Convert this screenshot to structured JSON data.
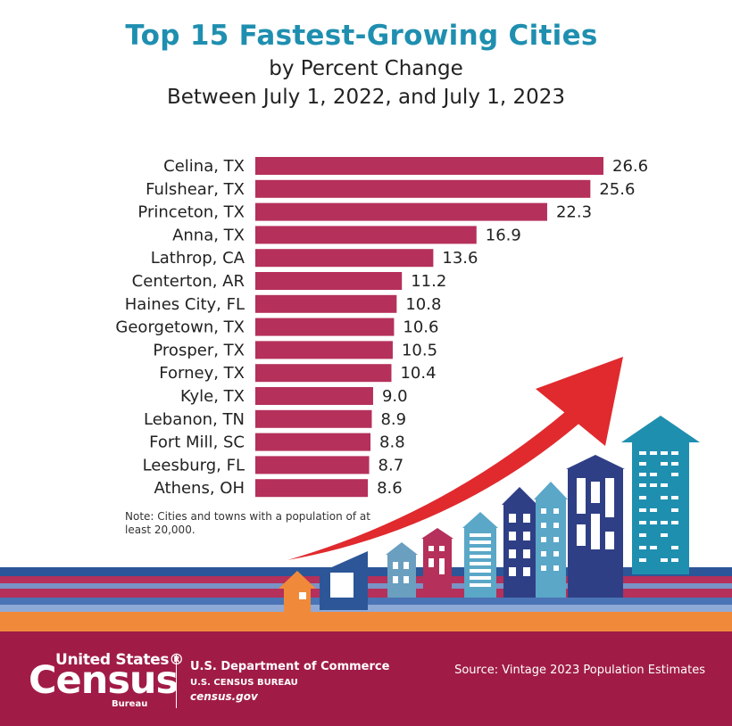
{
  "chart_data": {
    "type": "bar",
    "orientation": "horizontal",
    "title": "Top 15 Fastest-Growing Cities",
    "subtitle": [
      "by Percent Change",
      "Between July 1, 2022, and July 1, 2023"
    ],
    "categories": [
      "Celina, TX",
      "Fulshear, TX",
      "Princeton, TX",
      "Anna, TX",
      "Lathrop, CA",
      "Centerton, AR",
      "Haines City, FL",
      "Georgetown, TX",
      "Prosper, TX",
      "Forney, TX",
      "Kyle, TX",
      "Lebanon, TN",
      "Fort Mill, SC",
      "Leesburg, FL",
      "Athens, OH"
    ],
    "values": [
      26.6,
      25.6,
      22.3,
      16.9,
      13.6,
      11.2,
      10.8,
      10.6,
      10.5,
      10.4,
      9.0,
      8.9,
      8.8,
      8.7,
      8.6
    ],
    "value_labels": [
      "26.6",
      "25.6",
      "22.3",
      "16.9",
      "13.6",
      "11.2",
      "10.8",
      "10.6",
      "10.5",
      "10.4",
      "9.0",
      "8.9",
      "8.8",
      "8.7",
      "8.6"
    ],
    "xlim": [
      0,
      26.6
    ],
    "grid": false,
    "bar_color": "#b5305a",
    "note": "Note: Cities and towns with a population of at least 20,000."
  },
  "footer": {
    "logo": {
      "line1": "United States®",
      "line2": "Census",
      "line3": "Bureau"
    },
    "department": "U.S. Department of Commerce",
    "bureau": "U.S. CENSUS BUREAU",
    "website": "census.gov",
    "source": "Source: Vintage 2023 Population Estimates"
  },
  "colors": {
    "title": "#1f8fb0",
    "footer": "#a01c46",
    "stripe_blue": "#2c5697",
    "stripe_orange": "#f08a3a",
    "arrow": "#e02a2e"
  },
  "icons": [
    "house-icon",
    "building-icon",
    "growth-arrow-icon"
  ]
}
